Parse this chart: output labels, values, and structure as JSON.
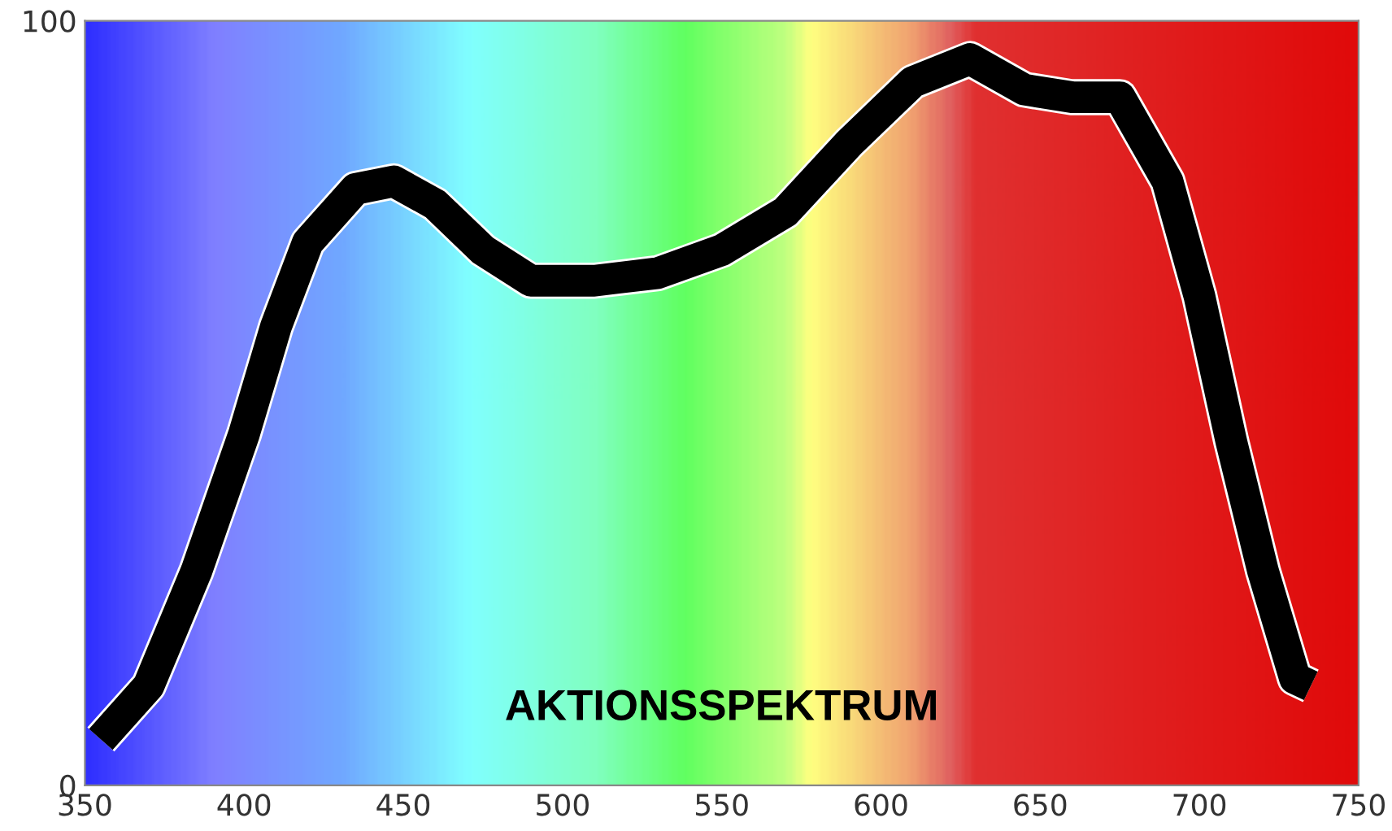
{
  "chart_data": {
    "type": "line",
    "x": [
      355,
      370,
      385,
      400,
      410,
      420,
      435,
      447,
      460,
      475,
      490,
      510,
      530,
      550,
      570,
      590,
      610,
      628,
      645,
      660,
      675,
      690,
      700,
      710,
      720,
      730,
      735
    ],
    "series": [
      {
        "color": "#000000",
        "values": [
          6,
          13,
          28,
          46,
          60,
          71,
          78,
          79,
          76,
          70,
          66,
          66,
          67,
          70,
          75,
          84,
          92,
          95,
          91,
          90,
          90,
          79,
          64,
          45,
          28,
          14,
          13
        ]
      }
    ],
    "xlim": [
      350,
      750
    ],
    "ylim": [
      0,
      100
    ],
    "xticks": [
      350,
      400,
      450,
      500,
      550,
      600,
      650,
      700,
      750
    ],
    "yticks": [
      0,
      100
    ],
    "annotations": [
      "AKTIONSSPEKTRUM"
    ],
    "grid": false,
    "legend": false,
    "marker": "none",
    "line_style": "solid"
  }
}
